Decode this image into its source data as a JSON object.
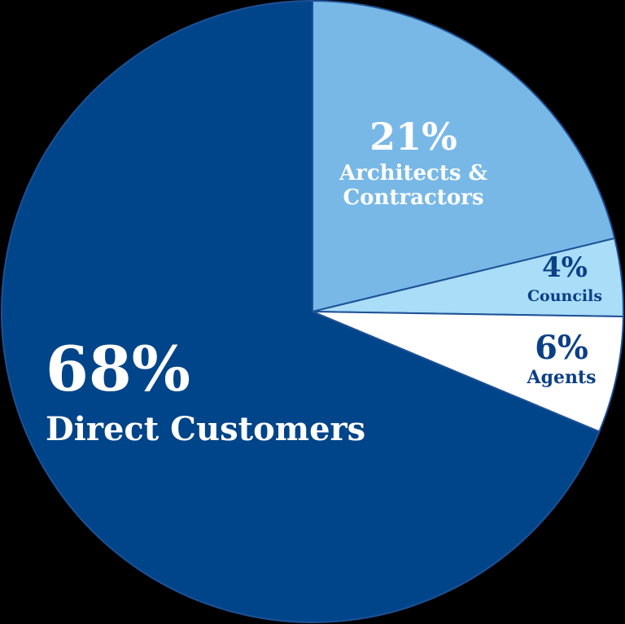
{
  "chart_data": {
    "type": "pie",
    "categories": [
      "Architects & Contractors",
      "Councils",
      "Agents",
      "Direct Customers"
    ],
    "values": [
      21,
      4,
      6,
      68
    ],
    "value_labels": [
      "21%",
      "4%",
      "6%",
      "68%"
    ],
    "colors": [
      "#78b8e7",
      "#a9ddf8",
      "#ffffff",
      "#004489"
    ]
  }
}
